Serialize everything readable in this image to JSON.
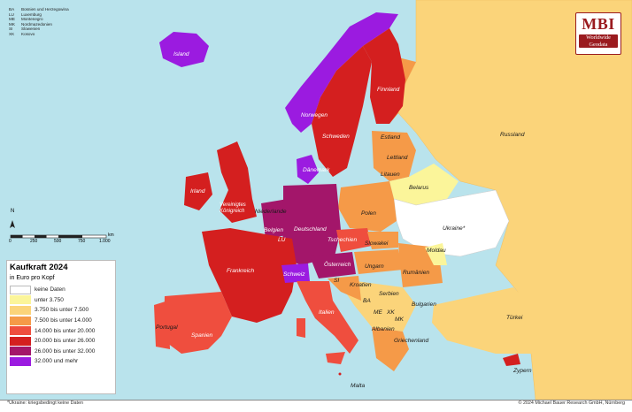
{
  "abbreviations": [
    {
      "code": "BA",
      "name": "Bosnien und Herzegowina"
    },
    {
      "code": "LU",
      "name": "Luxemburg"
    },
    {
      "code": "ME",
      "name": "Montenegro"
    },
    {
      "code": "MK",
      "name": "Nordmazedonien"
    },
    {
      "code": "SI",
      "name": "Slowenien"
    },
    {
      "code": "XK",
      "name": "Kosovo"
    }
  ],
  "logo": {
    "mbi": "MBI",
    "line1": "Worldwide",
    "line2": "Geodata"
  },
  "legend": {
    "title": "Kaufkraft 2024",
    "subtitle": "in Euro pro Kopf",
    "items": [
      {
        "label": "keine Daten",
        "color": "#ffffff"
      },
      {
        "label": "unter 3.750",
        "color": "#fbf59a"
      },
      {
        "label": "3.750 bis unter 7.500",
        "color": "#fbd47a"
      },
      {
        "label": "7.500 bis unter 14.000",
        "color": "#f59a48"
      },
      {
        "label": "14.000 bis unter 20.000",
        "color": "#ef4e3e"
      },
      {
        "label": "20.000 bis unter 26.000",
        "color": "#d41f1f"
      },
      {
        "label": "26.000 bis unter 32.000",
        "color": "#a3166a"
      },
      {
        "label": "32.000 und mehr",
        "color": "#9b1be0"
      }
    ]
  },
  "scale": {
    "labels": [
      "0",
      "250",
      "500",
      "750",
      "1.000"
    ],
    "unit": "km",
    "north": "N"
  },
  "countries": {
    "island": "Island",
    "norwegen": "Norwegen",
    "schweden": "Schweden",
    "finnland": "Finnland",
    "estland": "Estland",
    "lettland": "Lettland",
    "litauen": "Litauen",
    "russland": "Russland",
    "belarus": "Belarus",
    "ukraine": "Ukraine*",
    "polen": "Polen",
    "daenemark": "Dänemark",
    "irland": "Irland",
    "vk": "Vereinigtes Königreich",
    "niederlande": "Niederlande",
    "belgien": "Belgien",
    "deutschland": "Deutschland",
    "lu": "LU",
    "tschechien": "Tschechien",
    "slowakei": "Slowakei",
    "moldau": "Moldau",
    "frankreich": "Frankreich",
    "schweiz": "Schweiz",
    "oesterreich": "Österreich",
    "ungarn": "Ungarn",
    "rumaenien": "Rumänien",
    "si": "SI",
    "kroatien": "Kroatien",
    "ba": "BA",
    "serbien": "Serbien",
    "me": "ME",
    "xk": "XK",
    "mk": "MK",
    "bulgarien": "Bulgarien",
    "albanien": "Albanien",
    "griechenland": "Griechenland",
    "tuerkei": "Türkei",
    "zypern": "Zypern",
    "portugal": "Portugal",
    "spanien": "Spanien",
    "italien": "Italien",
    "malta": "Malta"
  },
  "footnote": "*Ukraine: kriegsbedingt keine Daten",
  "copyright": "© 2024 Michael Bauer Research GmbH, Nürnberg"
}
